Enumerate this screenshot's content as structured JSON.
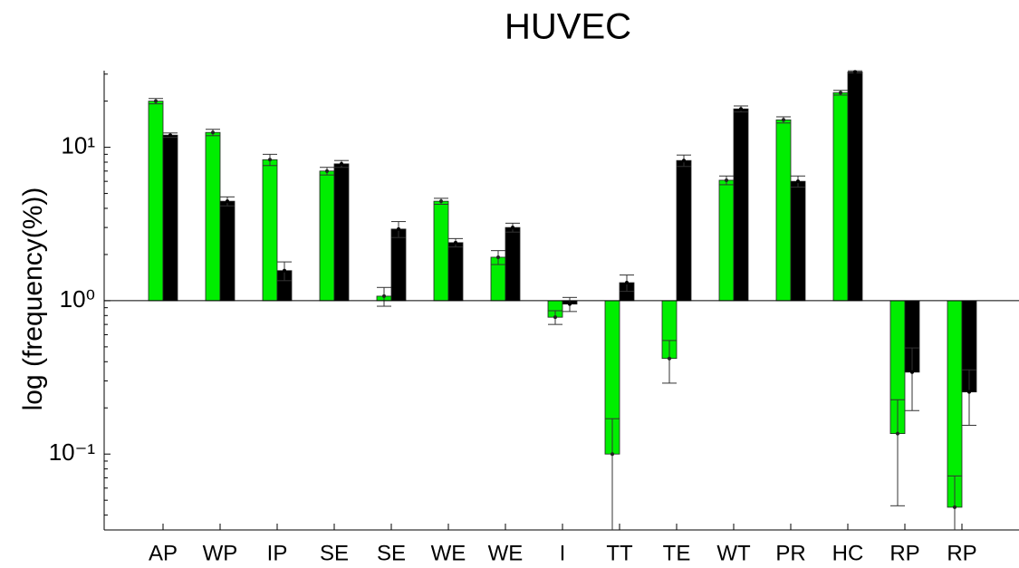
{
  "chart_data": {
    "type": "bar",
    "title": "HUVEC",
    "y_label": "log (frequency(%))",
    "categories": [
      "AP",
      "WP",
      "IP",
      "SE",
      "SE",
      "WE",
      "WE",
      "I",
      "TT",
      "TE",
      "WT",
      "PR",
      "HC",
      "RP",
      "RP"
    ],
    "series": [
      {
        "color": "#00ee00",
        "values": [
          20,
          12.5,
          8.3,
          7.0,
          1.07,
          4.45,
          1.92,
          0.78,
          0.1,
          0.42,
          6.1,
          15.1,
          22.7,
          0.136,
          0.045
        ],
        "errors": [
          0.8,
          0.6,
          0.7,
          0.4,
          0.15,
          0.2,
          0.2,
          0.08,
          0.07,
          0.13,
          0.4,
          0.7,
          0.8,
          0.09,
          0.027
        ]
      },
      {
        "color": "#000000",
        "values": [
          12.0,
          4.45,
          1.57,
          7.8,
          2.93,
          2.39,
          3.0,
          0.95,
          1.31,
          8.2,
          17.8,
          6.0,
          31,
          0.342,
          0.254
        ],
        "errors": [
          0.4,
          0.3,
          0.22,
          0.4,
          0.35,
          0.15,
          0.2,
          0.1,
          0.16,
          0.7,
          0.8,
          0.5,
          0.5,
          0.15,
          0.1
        ]
      }
    ],
    "log_y": true,
    "ylim": [
      0.032,
      31.6
    ],
    "yticks": [
      {
        "value": 0.1,
        "label": "10⁻¹"
      },
      {
        "value": 1,
        "label": "10⁰"
      },
      {
        "value": 10,
        "label": "10¹"
      }
    ]
  }
}
